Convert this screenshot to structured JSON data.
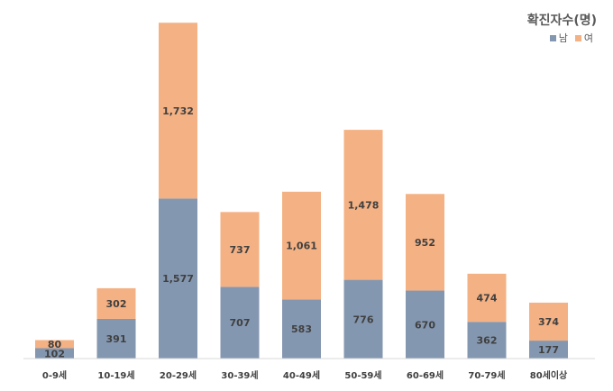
{
  "chart_data": {
    "type": "bar",
    "stacked": true,
    "title": "확진자수(명)",
    "categories": [
      "0-9세",
      "10-19세",
      "20-29세",
      "30-39세",
      "40-49세",
      "50-59세",
      "60-69세",
      "70-79세",
      "80세이상"
    ],
    "series": [
      {
        "name": "남",
        "color": "#8497b0",
        "values": [
          102,
          391,
          1577,
          707,
          583,
          776,
          670,
          362,
          177
        ]
      },
      {
        "name": "여",
        "color": "#f4b183",
        "values": [
          80,
          302,
          1732,
          737,
          1061,
          1478,
          952,
          474,
          374
        ]
      }
    ],
    "data_labels": [
      [
        "102",
        "391",
        "1,577",
        "707",
        "583",
        "776",
        "670",
        "362",
        "177"
      ],
      [
        "80",
        "302",
        "1,732",
        "737",
        "1,061",
        "1,478",
        "952",
        "474",
        "374"
      ]
    ],
    "ylim": [
      0,
      3400
    ],
    "grid": false,
    "legend": "top-right"
  }
}
